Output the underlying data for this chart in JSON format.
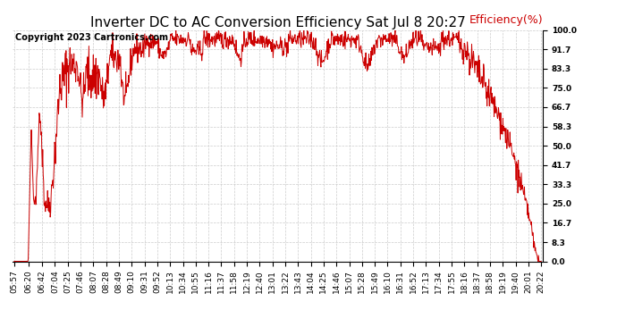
{
  "title": "Inverter DC to AC Conversion Efficiency Sat Jul 8 20:27",
  "copyright": "Copyright 2023 Cartronics.com",
  "ylabel": "Efficiency(%)",
  "line_color": "#cc0000",
  "bg_color": "#ffffff",
  "grid_color": "#cccccc",
  "yticks": [
    0.0,
    8.3,
    16.7,
    25.0,
    33.3,
    41.7,
    50.0,
    58.3,
    66.7,
    75.0,
    83.3,
    91.7,
    100.0
  ],
  "ylim": [
    0.0,
    100.0
  ],
  "x_labels": [
    "05:57",
    "06:20",
    "06:42",
    "07:04",
    "07:25",
    "07:46",
    "08:07",
    "08:28",
    "08:49",
    "09:10",
    "09:31",
    "09:52",
    "10:13",
    "10:34",
    "10:55",
    "11:16",
    "11:37",
    "11:58",
    "12:19",
    "12:40",
    "13:01",
    "13:22",
    "13:43",
    "14:04",
    "14:25",
    "14:46",
    "15:07",
    "15:28",
    "15:49",
    "16:10",
    "16:31",
    "16:52",
    "17:13",
    "17:34",
    "17:55",
    "18:16",
    "18:37",
    "18:58",
    "19:19",
    "19:40",
    "20:01",
    "20:22"
  ],
  "title_fontsize": 11,
  "axis_fontsize": 6.5,
  "ylabel_fontsize": 9,
  "copyright_fontsize": 7,
  "figsize": [
    6.9,
    3.75
  ],
  "dpi": 100
}
